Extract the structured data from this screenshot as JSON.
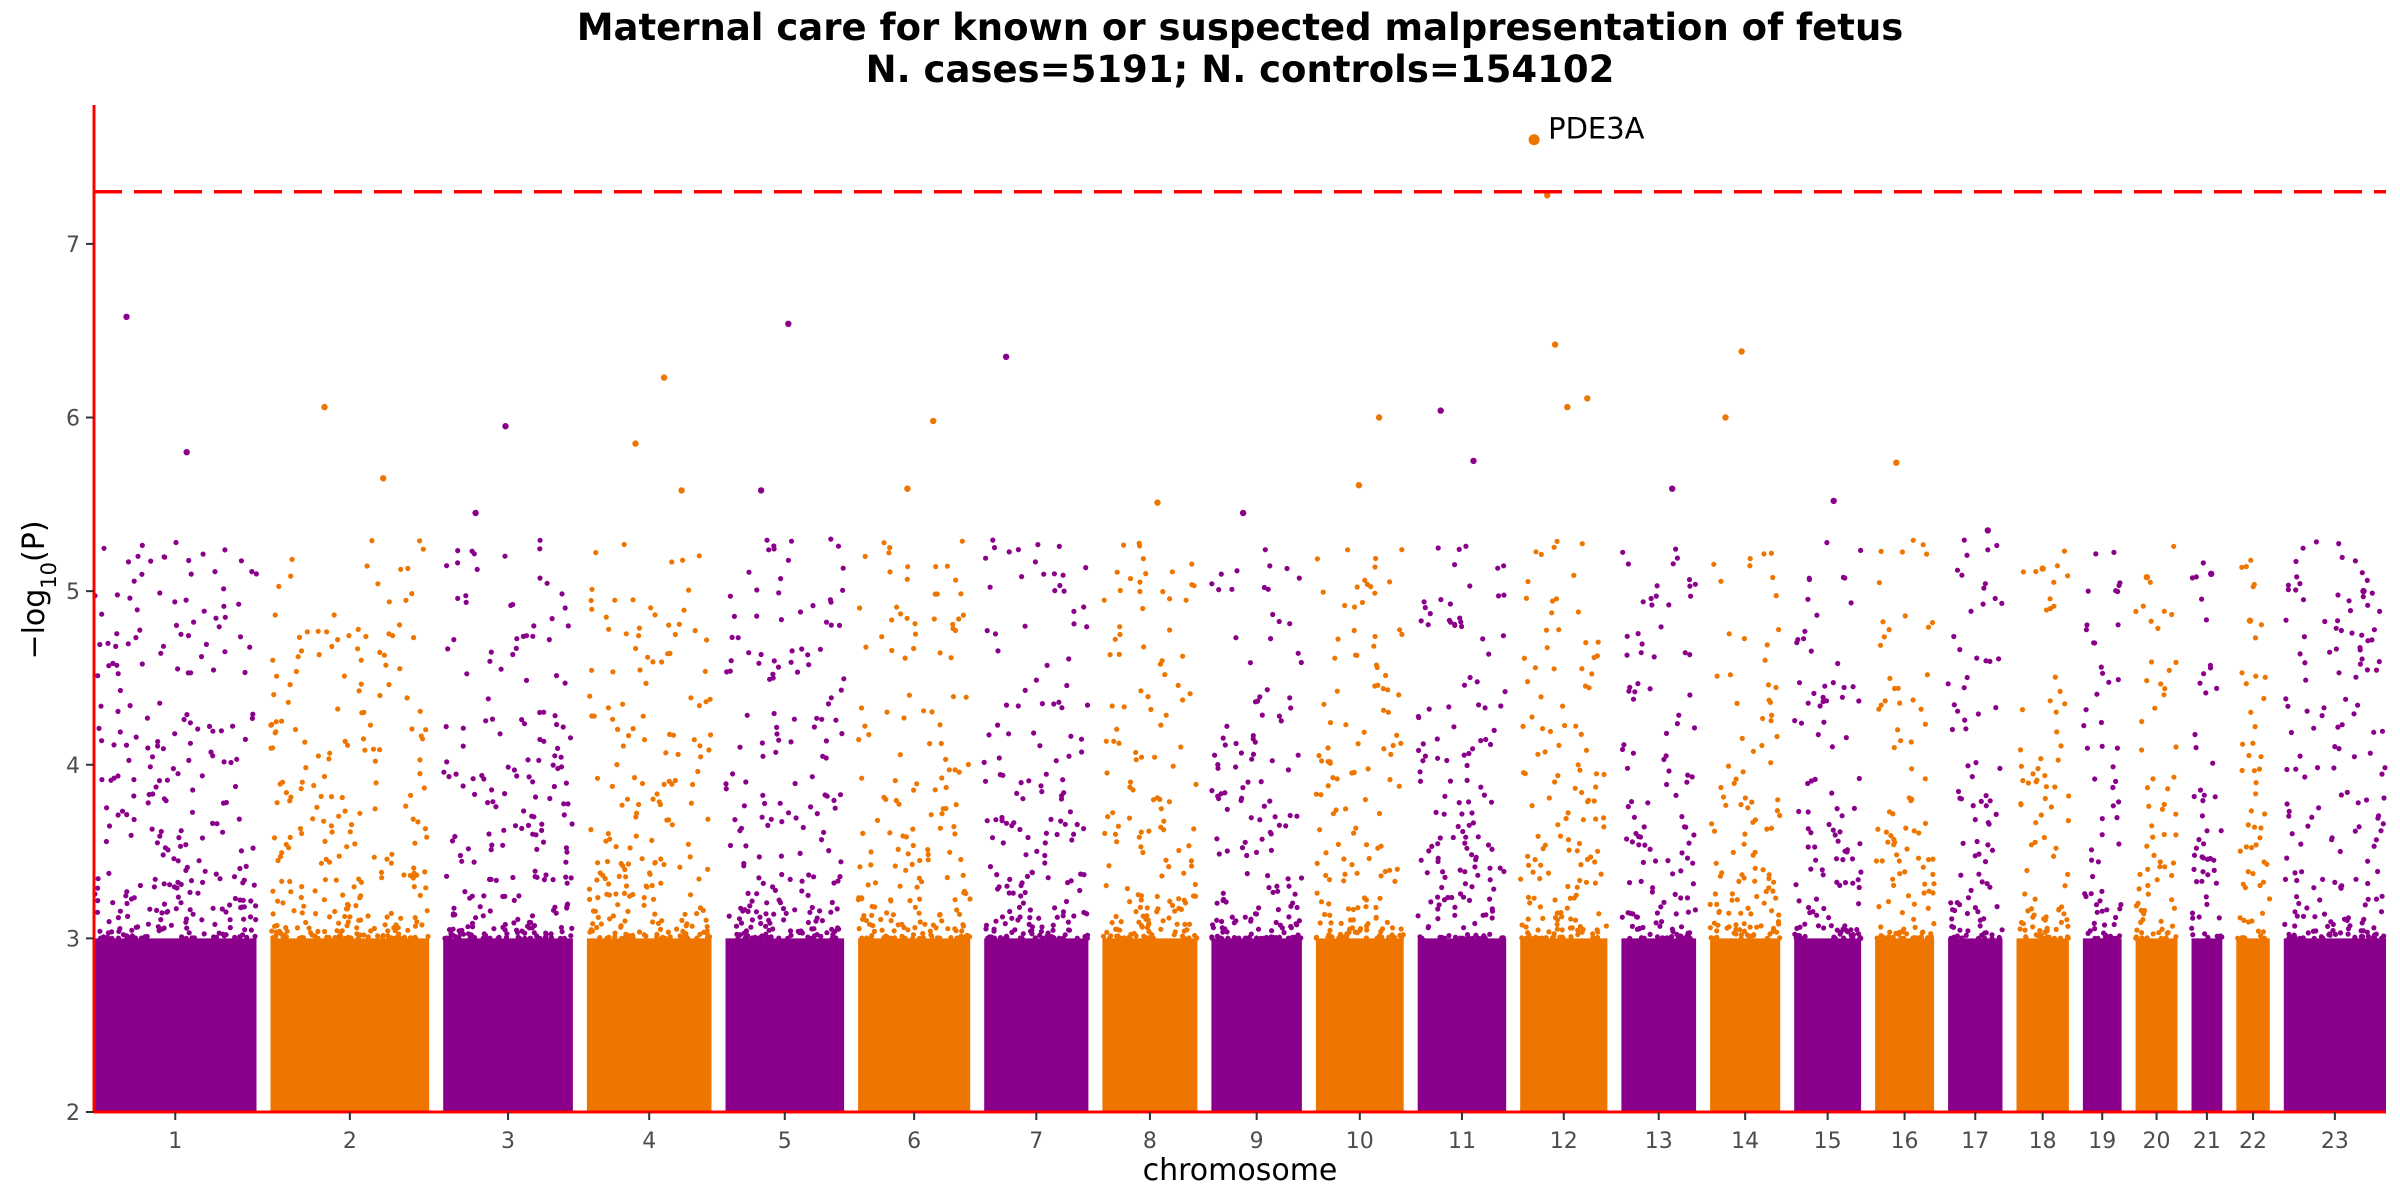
{
  "chart_data": {
    "type": "scatter",
    "title": "Maternal care for known or suspected malpresentation of fetus",
    "subtitle": "N. cases=5191; N. controls=154102",
    "xlabel": "chromosome",
    "ylabel_prefix": "−log",
    "ylabel_sub": "10",
    "ylabel_suffix": "(P)",
    "ylim": [
      2,
      7.8
    ],
    "yticks": [
      "2",
      "3",
      "4",
      "5",
      "6",
      "7"
    ],
    "threshold": 7.3,
    "colors": {
      "odd": "#8b008b",
      "even": "#ee7600",
      "threshold": "#ff0000",
      "axis": "#ff0000"
    },
    "chromosomes": [
      {
        "label": "1",
        "size": 248
      },
      {
        "label": "2",
        "size": 242
      },
      {
        "label": "3",
        "size": 198
      },
      {
        "label": "4",
        "size": 190
      },
      {
        "label": "5",
        "size": 181
      },
      {
        "label": "6",
        "size": 171
      },
      {
        "label": "7",
        "size": 159
      },
      {
        "label": "8",
        "size": 145
      },
      {
        "label": "9",
        "size": 138
      },
      {
        "label": "10",
        "size": 134
      },
      {
        "label": "11",
        "size": 135
      },
      {
        "label": "12",
        "size": 133
      },
      {
        "label": "13",
        "size": 114
      },
      {
        "label": "14",
        "size": 107
      },
      {
        "label": "15",
        "size": 102
      },
      {
        "label": "16",
        "size": 90
      },
      {
        "label": "17",
        "size": 83
      },
      {
        "label": "18",
        "size": 80
      },
      {
        "label": "19",
        "size": 59
      },
      {
        "label": "20",
        "size": 64
      },
      {
        "label": "21",
        "size": 47
      },
      {
        "label": "22",
        "size": 51
      },
      {
        "label": "23",
        "size": 156
      }
    ],
    "peaks": [
      {
        "chr": "1",
        "value": 6.58
      },
      {
        "chr": "1",
        "value": 5.8
      },
      {
        "chr": "2",
        "value": 6.06
      },
      {
        "chr": "2",
        "value": 5.65
      },
      {
        "chr": "3",
        "value": 5.95
      },
      {
        "chr": "3",
        "value": 5.45
      },
      {
        "chr": "4",
        "value": 6.23
      },
      {
        "chr": "4",
        "value": 5.85
      },
      {
        "chr": "4",
        "value": 5.58
      },
      {
        "chr": "5",
        "value": 6.54
      },
      {
        "chr": "5",
        "value": 5.58
      },
      {
        "chr": "6",
        "value": 5.98
      },
      {
        "chr": "6",
        "value": 5.59
      },
      {
        "chr": "7",
        "value": 6.35
      },
      {
        "chr": "8",
        "value": 5.51
      },
      {
        "chr": "9",
        "value": 5.45
      },
      {
        "chr": "10",
        "value": 6.0
      },
      {
        "chr": "10",
        "value": 5.61
      },
      {
        "chr": "11",
        "value": 6.04
      },
      {
        "chr": "11",
        "value": 5.75
      },
      {
        "chr": "12",
        "value": 6.42
      },
      {
        "chr": "12",
        "value": 6.11
      },
      {
        "chr": "12",
        "value": 6.06
      },
      {
        "chr": "12",
        "value": 7.28
      },
      {
        "chr": "13",
        "value": 5.59
      },
      {
        "chr": "14",
        "value": 6.38
      },
      {
        "chr": "14",
        "value": 6.0
      },
      {
        "chr": "15",
        "value": 5.52
      },
      {
        "chr": "16",
        "value": 5.74
      },
      {
        "chr": "17",
        "value": 5.35
      },
      {
        "chr": "18",
        "value": 5.13
      },
      {
        "chr": "20",
        "value": 5.08
      },
      {
        "chr": "21",
        "value": 5.1
      },
      {
        "chr": "22",
        "value": 4.83
      },
      {
        "chr": "23",
        "value": 5.0
      }
    ],
    "annotations": [
      {
        "chr": "12",
        "value": 7.6,
        "label": "PDE3A"
      }
    ]
  }
}
